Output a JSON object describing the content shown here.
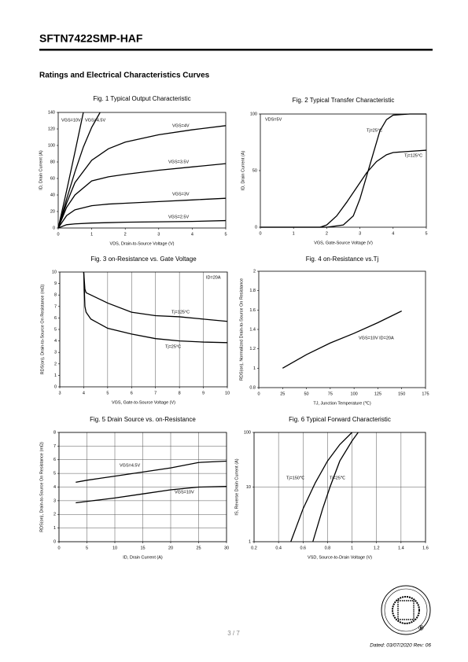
{
  "header": {
    "title": "SFTN7422SMP-HAF",
    "section": "Ratings and Electrical Characteristics Curves"
  },
  "chart_data": [
    {
      "type": "line",
      "title": "Fig. 1 Typical Output Characteristic",
      "x_label": "VDS, Drain-to-Source Voltage (V)",
      "y_label": "ID, Drain Current (A)",
      "xlim": [
        0,
        5
      ],
      "xticks": [
        0,
        1,
        2,
        3,
        4,
        5
      ],
      "ylim": [
        0,
        140
      ],
      "yticks": [
        0,
        20,
        40,
        60,
        80,
        100,
        120,
        140
      ],
      "grid": "none",
      "annotations": [],
      "series": [
        {
          "name": "VGS=10V",
          "color": "#000000",
          "x": [
            0,
            0.25,
            0.5,
            0.75
          ],
          "values": [
            0,
            45,
            92,
            140
          ]
        },
        {
          "name": "VGS=4.5V",
          "color": "#000000",
          "x": [
            0,
            0.25,
            0.5,
            0.75,
            1,
            1.25
          ],
          "values": [
            0,
            35,
            68,
            98,
            122,
            140
          ]
        },
        {
          "name": "VGS=4V",
          "color": "#000000",
          "x": [
            0,
            0.25,
            0.5,
            1,
            1.5,
            2,
            3,
            4,
            5
          ],
          "values": [
            0,
            30,
            55,
            82,
            96,
            104,
            113,
            119,
            124
          ]
        },
        {
          "name": "VGS=3.5V",
          "color": "#000000",
          "x": [
            0,
            0.25,
            0.5,
            1,
            1.5,
            2,
            3,
            4,
            5
          ],
          "values": [
            0,
            25,
            40,
            57,
            62,
            65,
            70,
            74,
            78
          ]
        },
        {
          "name": "VGS=3V",
          "color": "#000000",
          "x": [
            0,
            0.25,
            0.5,
            1,
            1.5,
            2,
            3,
            4,
            5
          ],
          "values": [
            0,
            15,
            22,
            27,
            29,
            30,
            32,
            34,
            36
          ]
        },
        {
          "name": "VGS=2.5V",
          "color": "#000000",
          "x": [
            0,
            0.25,
            0.5,
            1,
            1.5,
            2,
            3,
            4,
            5
          ],
          "values": [
            0,
            4,
            5,
            6,
            6.5,
            7,
            7.5,
            8,
            9
          ]
        }
      ]
    },
    {
      "type": "line",
      "title": "Fig. 2 Typical Transfer Characteristic",
      "x_label": "VGS, Gate-Source Voltage (V)",
      "y_label": "ID, Drain Current (A)",
      "xlim": [
        0,
        5
      ],
      "xticks": [
        0,
        1,
        2,
        3,
        4,
        5
      ],
      "ylim": [
        0,
        100
      ],
      "yticks": [
        0,
        50,
        100
      ],
      "grid": "none",
      "annotations": [
        "VDS=5V"
      ],
      "series": [
        {
          "name": "Tj=25°C",
          "color": "#000000",
          "x": [
            0,
            1,
            2,
            2.5,
            2.8,
            3,
            3.2,
            3.4,
            3.6,
            3.8,
            4,
            4.5,
            5
          ],
          "values": [
            0,
            0,
            0,
            2,
            10,
            25,
            45,
            65,
            85,
            95,
            99,
            100,
            100
          ]
        },
        {
          "name": "Tj=125°C",
          "color": "#000000",
          "x": [
            0,
            1,
            1.8,
            2,
            2.3,
            2.6,
            2.9,
            3.2,
            3.5,
            3.8,
            4,
            4.5,
            5
          ],
          "values": [
            0,
            0,
            0,
            2,
            10,
            22,
            35,
            48,
            58,
            64,
            66,
            67,
            68
          ]
        }
      ]
    },
    {
      "type": "line",
      "title": "Fig. 3 on-Resistance vs. Gate Voltage",
      "x_label": "VGS, Gate-to-Source Voltage (V)",
      "y_label": "RDS(on), Drain-to-Source On Resistance (mΩ)",
      "xlim": [
        3,
        10
      ],
      "xticks": [
        3,
        4,
        5,
        6,
        7,
        8,
        9,
        10
      ],
      "ylim": [
        0,
        10
      ],
      "yticks": [
        0,
        1,
        2,
        3,
        4,
        5,
        6,
        7,
        8,
        9,
        10
      ],
      "grid": "x",
      "annotations": [
        "ID=20A"
      ],
      "series": [
        {
          "name": "Tj=125°C",
          "color": "#000000",
          "x": [
            4,
            4.05,
            4.1,
            4.3,
            5,
            6,
            7,
            8,
            9,
            10
          ],
          "values": [
            10,
            8.5,
            8.2,
            8,
            7.3,
            6.5,
            6.2,
            6.1,
            5.9,
            5.7
          ]
        },
        {
          "name": "Tj=25°C",
          "color": "#000000",
          "x": [
            4,
            4.05,
            4.1,
            4.3,
            5,
            6,
            7,
            8,
            9,
            10
          ],
          "values": [
            10,
            7,
            6.5,
            5.9,
            5.1,
            4.6,
            4.2,
            4.0,
            3.9,
            3.85
          ]
        }
      ]
    },
    {
      "type": "line",
      "title": "Fig. 4 on-Resistance vs.Tj",
      "x_label": "TJ, Junction Temperature (℃)",
      "y_label": "RDS(on), Normalized Drain-to-Source On Resistance",
      "xlim": [
        0,
        175
      ],
      "xticks": [
        0,
        25,
        50,
        75,
        100,
        125,
        150,
        175
      ],
      "ylim": [
        0.8,
        2
      ],
      "yticks": [
        0.8,
        1,
        1.2,
        1.4,
        1.6,
        1.8,
        2
      ],
      "grid": "none",
      "annotations": [
        "VGS=10V ID=20A"
      ],
      "series": [
        {
          "color": "#000000",
          "x": [
            25,
            50,
            75,
            100,
            125,
            150
          ],
          "values": [
            1,
            1.14,
            1.26,
            1.36,
            1.47,
            1.59
          ]
        }
      ]
    },
    {
      "type": "line",
      "title": "Fig. 5 Drain Source vs. on-Resistance",
      "x_label": "ID, Drain Current (A)",
      "y_label": "RDS(on), Drain-to-Source On Resistance (mΩ)",
      "xlim": [
        0,
        30
      ],
      "xticks": [
        0,
        5,
        10,
        15,
        20,
        25,
        30
      ],
      "ylim": [
        0,
        8
      ],
      "yticks": [
        0,
        1,
        2,
        3,
        4,
        5,
        6,
        7,
        8
      ],
      "grid": "both",
      "annotations": [],
      "series": [
        {
          "name": "VGS=4.5V",
          "color": "#000000",
          "x": [
            3,
            5,
            10,
            15,
            20,
            25,
            30
          ],
          "values": [
            4.35,
            4.5,
            4.8,
            5.1,
            5.4,
            5.8,
            5.9
          ]
        },
        {
          "name": "VGS=10V",
          "color": "#000000",
          "x": [
            3,
            5,
            10,
            15,
            20,
            25,
            30
          ],
          "values": [
            2.85,
            2.95,
            3.2,
            3.5,
            3.8,
            4.0,
            4.05
          ]
        }
      ]
    },
    {
      "type": "line",
      "title": "Fig. 6 Typical Forward Characteristic",
      "x_label": "VSD, Source-to-Drain Voltage (V)",
      "y_label": "IS, Reverse Drain Current (A)",
      "xlim": [
        0.2,
        1.6
      ],
      "xticks": [
        0.2,
        0.4,
        0.6,
        0.8,
        1,
        1.2,
        1.4,
        1.6
      ],
      "ylim": [
        1,
        100
      ],
      "yticks": [
        1,
        10,
        100
      ],
      "ylog": true,
      "grid": "both",
      "annotations": [],
      "series": [
        {
          "name": "Tj=150℃",
          "color": "#000000",
          "x": [
            0.5,
            0.55,
            0.6,
            0.7,
            0.8,
            0.9,
            1.0
          ],
          "values": [
            1,
            2,
            4,
            12,
            30,
            60,
            100
          ]
        },
        {
          "name": "Tj=25℃",
          "color": "#000000",
          "x": [
            0.68,
            0.72,
            0.76,
            0.82,
            0.9,
            1.0,
            1.05
          ],
          "values": [
            1,
            2,
            4,
            10,
            30,
            70,
            100
          ]
        }
      ]
    }
  ],
  "footer": {
    "page": "3 / 7",
    "dated": "Dated: 03/07/2020  Rev: 06",
    "logo_mark": "®"
  }
}
